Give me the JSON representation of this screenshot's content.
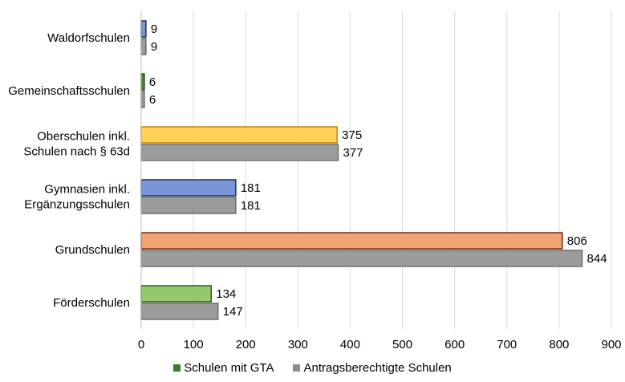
{
  "chart_data": {
    "type": "bar",
    "orientation": "horizontal",
    "title": "",
    "xlabel": "",
    "ylabel": "",
    "xlim": [
      0,
      900
    ],
    "x_ticks": [
      "0",
      "100",
      "200",
      "300",
      "400",
      "500",
      "600",
      "700",
      "800",
      "900"
    ],
    "grid": "vertical",
    "legend_position": "bottom",
    "categories": [
      "Waldorfschulen",
      "Gemeinschaftsschulen",
      "Oberschulen inkl. Schulen nach § 63d",
      "Gymnasien inkl. Ergänzungsschulen",
      "Grundschulen",
      "Förderschulen"
    ],
    "category_lines": [
      [
        "Waldorfschulen"
      ],
      [
        "Gemeinschaftsschulen"
      ],
      [
        "Oberschulen inkl.",
        "Schulen nach § 63d"
      ],
      [
        "Gymnasien inkl.",
        "Ergänzungsschulen"
      ],
      [
        "Grundschulen"
      ],
      [
        "Förderschulen"
      ]
    ],
    "series": [
      {
        "name": "Schulen mit GTA",
        "legend_color": "#3d7a2a",
        "values": [
          9,
          6,
          375,
          181,
          806,
          134
        ],
        "labels": [
          "9",
          "6",
          "375",
          "181",
          "806",
          "134"
        ],
        "fills": [
          "#7b96cf",
          "#4e8a36",
          "#ffd056",
          "#7b96d8",
          "#f2a374",
          "#93c96c"
        ],
        "strokes": [
          "#1f2f55",
          "#274f1c",
          "#b8860b",
          "#1f2f55",
          "#7a2a10",
          "#2c5a1a"
        ]
      },
      {
        "name": "Antragsberechtigte Schulen",
        "legend_color": "#8c8c8c",
        "values": [
          9,
          6,
          377,
          181,
          844,
          147
        ],
        "labels": [
          "9",
          "6",
          "377",
          "181",
          "844",
          "147"
        ],
        "fills": [
          "#9b9b9b",
          "#9b9b9b",
          "#9b9b9b",
          "#9b9b9b",
          "#9b9b9b",
          "#9b9b9b"
        ],
        "strokes": [
          "#6e6e6e",
          "#6e6e6e",
          "#6e6e6e",
          "#6e6e6e",
          "#6e6e6e",
          "#6e6e6e"
        ]
      }
    ]
  }
}
